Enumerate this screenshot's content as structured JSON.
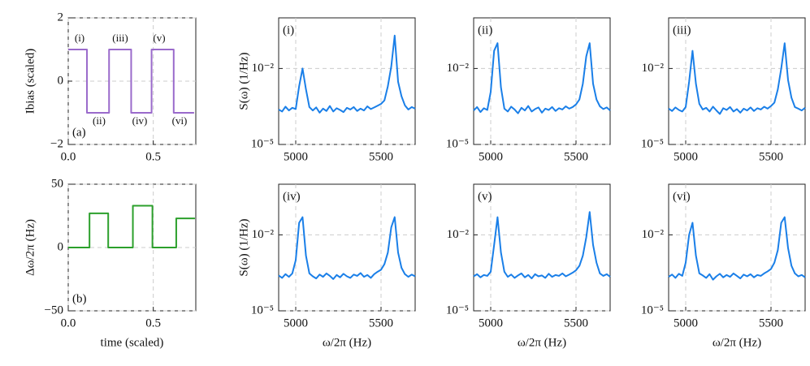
{
  "chart_data": [
    {
      "type": "line",
      "label": "(a)",
      "label_corner": "lower left",
      "ylabel": "Ibias (scaled)",
      "x": [
        0,
        0.11,
        0.11,
        0.24,
        0.24,
        0.37,
        0.37,
        0.49,
        0.49,
        0.62,
        0.62,
        0.74
      ],
      "series": [
        {
          "color": "#9a6acb",
          "values": [
            1,
            1,
            -1,
            -1,
            1,
            1,
            -1,
            -1,
            1,
            1,
            -1,
            -1
          ]
        }
      ],
      "xlim": [
        0,
        0.75
      ],
      "xticks": [
        {
          "value": 0,
          "label": "0.0"
        },
        0.5
      ],
      "ylim": [
        -2,
        2
      ],
      "yticks": [
        {
          "value": -2,
          "label": "−2"
        },
        0,
        2
      ],
      "grid": true,
      "annotations": [
        "(i)",
        "(ii)",
        "(iii)",
        "(iv)",
        "(v)",
        "(vi)"
      ]
    },
    {
      "type": "line",
      "label": "(b)",
      "label_corner": "lower left",
      "ylabel": "Δω/2π (Hz)",
      "xlabel": "time (scaled)",
      "x": [
        0,
        0.125,
        0.125,
        0.235,
        0.235,
        0.38,
        0.38,
        0.495,
        0.495,
        0.635,
        0.635,
        0.745
      ],
      "series": [
        {
          "color": "#2ca02c",
          "values": [
            0,
            0,
            27,
            27,
            0,
            0,
            33,
            33,
            0,
            0,
            23,
            23
          ]
        }
      ],
      "xlim": [
        0,
        0.75
      ],
      "xticks": [
        {
          "value": 0,
          "label": "0.0"
        },
        0.5
      ],
      "ylim": [
        -50,
        50
      ],
      "yticks": [
        {
          "value": -50,
          "label": "−50"
        },
        0,
        50
      ],
      "grid": true
    },
    {
      "type": "line",
      "label": "(i)",
      "label_corner": "upper left",
      "ylabel": "S(ω) (1/Hz)",
      "log_y": true,
      "x": [
        4900,
        4920,
        4940,
        4960,
        4980,
        5000,
        5020,
        5040,
        5060,
        5080,
        5100,
        5120,
        5140,
        5160,
        5180,
        5200,
        5220,
        5240,
        5260,
        5280,
        5300,
        5320,
        5340,
        5360,
        5380,
        5400,
        5420,
        5440,
        5460,
        5480,
        5500,
        5520,
        5540,
        5560,
        5580,
        5600,
        5620,
        5640,
        5660,
        5680,
        5700
      ],
      "series": [
        {
          "color": "#1a7fe8",
          "values": [
            0.00024,
            0.0002,
            0.00031,
            0.00022,
            0.00028,
            0.00025,
            0.002,
            0.01,
            0.0015,
            0.0003,
            0.00022,
            0.00029,
            0.00018,
            0.00026,
            0.00021,
            0.00033,
            0.0002,
            0.00027,
            0.00023,
            0.00019,
            0.00028,
            0.00024,
            0.0003,
            0.00021,
            0.00026,
            0.00022,
            0.00032,
            0.00025,
            0.00029,
            0.00034,
            0.0004,
            0.00055,
            0.002,
            0.012,
            0.2,
            0.003,
            0.0008,
            0.00035,
            0.00024,
            0.0003,
            0.00026
          ]
        }
      ],
      "xlim": [
        4900,
        5700
      ],
      "xticks": [
        5000,
        5500
      ],
      "ylim": [
        1e-05,
        1
      ],
      "yticks": [
        {
          "value": 1e-05,
          "label": "10⁻⁵"
        },
        {
          "value": 0.01,
          "label": "10⁻²"
        }
      ],
      "grid": true
    },
    {
      "type": "line",
      "label": "(ii)",
      "label_corner": "upper left",
      "log_y": true,
      "x": [
        4900,
        4920,
        4940,
        4960,
        4980,
        5000,
        5020,
        5040,
        5060,
        5080,
        5100,
        5120,
        5140,
        5160,
        5180,
        5200,
        5220,
        5240,
        5260,
        5280,
        5300,
        5320,
        5340,
        5360,
        5380,
        5400,
        5420,
        5440,
        5460,
        5480,
        5500,
        5520,
        5540,
        5560,
        5580,
        5600,
        5620,
        5640,
        5660,
        5680,
        5700
      ],
      "series": [
        {
          "color": "#1a7fe8",
          "values": [
            0.00022,
            0.0003,
            0.00019,
            0.00027,
            0.00023,
            0.0012,
            0.05,
            0.1,
            0.0018,
            0.00026,
            0.0002,
            0.00031,
            0.00024,
            0.00017,
            0.00028,
            0.00022,
            0.00033,
            0.0002,
            0.00025,
            0.00029,
            0.00018,
            0.00026,
            0.00023,
            0.0003,
            0.00021,
            0.00027,
            0.00024,
            0.00032,
            0.00026,
            0.0003,
            0.00038,
            0.0006,
            0.0025,
            0.03,
            0.1,
            0.0025,
            0.0006,
            0.00032,
            0.00025,
            0.00029,
            0.00022
          ]
        }
      ],
      "xlim": [
        4900,
        5700
      ],
      "xticks": [
        5000,
        5500
      ],
      "ylim": [
        1e-05,
        1
      ],
      "yticks": [
        {
          "value": 1e-05,
          "label": "10⁻⁵"
        },
        {
          "value": 0.01,
          "label": "10⁻²"
        }
      ],
      "grid": true
    },
    {
      "type": "line",
      "label": "(iii)",
      "label_corner": "upper left",
      "log_y": true,
      "x": [
        4900,
        4920,
        4940,
        4960,
        4980,
        5000,
        5020,
        5040,
        5060,
        5080,
        5100,
        5120,
        5140,
        5160,
        5180,
        5200,
        5220,
        5240,
        5260,
        5280,
        5300,
        5320,
        5340,
        5360,
        5380,
        5400,
        5420,
        5440,
        5460,
        5480,
        5500,
        5520,
        5540,
        5560,
        5580,
        5600,
        5620,
        5640,
        5660,
        5680,
        5700
      ],
      "series": [
        {
          "color": "#1a7fe8",
          "values": [
            0.00026,
            0.00021,
            0.00029,
            0.00023,
            0.0002,
            0.0003,
            0.003,
            0.05,
            0.0025,
            0.0004,
            0.00024,
            0.00028,
            0.0002,
            0.00031,
            0.00022,
            0.00016,
            0.00027,
            0.00023,
            0.0003,
            0.0002,
            0.00025,
            0.00018,
            0.00026,
            0.00022,
            0.00029,
            0.00021,
            0.00027,
            0.00024,
            0.00031,
            0.00026,
            0.00033,
            0.00045,
            0.0015,
            0.01,
            0.1,
            0.0035,
            0.0007,
            0.0003,
            0.00026,
            0.00022,
            0.00028
          ]
        }
      ],
      "xlim": [
        4900,
        5700
      ],
      "xticks": [
        5000,
        5500
      ],
      "ylim": [
        1e-05,
        1
      ],
      "yticks": [
        {
          "value": 1e-05,
          "label": "10⁻⁵"
        },
        {
          "value": 0.01,
          "label": "10⁻²"
        }
      ],
      "grid": true
    },
    {
      "type": "line",
      "label": "(iv)",
      "label_corner": "upper left",
      "log_y": true,
      "ylabel": "S(ω) (1/Hz)",
      "xlabel": "ω/2π (Hz)",
      "x": [
        4900,
        4920,
        4940,
        4960,
        4980,
        5000,
        5020,
        5040,
        5060,
        5080,
        5100,
        5120,
        5140,
        5160,
        5180,
        5200,
        5220,
        5240,
        5260,
        5280,
        5300,
        5320,
        5340,
        5360,
        5380,
        5400,
        5420,
        5440,
        5460,
        5480,
        5500,
        5520,
        5540,
        5560,
        5580,
        5600,
        5620,
        5640,
        5660,
        5680,
        5700
      ],
      "series": [
        {
          "color": "#1a7fe8",
          "values": [
            0.00025,
            0.0002,
            0.00028,
            0.00022,
            0.0003,
            0.001,
            0.03,
            0.05,
            0.0015,
            0.0003,
            0.00023,
            0.00019,
            0.00027,
            0.00022,
            0.0003,
            0.00024,
            0.00018,
            0.00026,
            0.00021,
            0.00029,
            0.00023,
            0.0002,
            0.00027,
            0.00024,
            0.00031,
            0.00022,
            0.00026,
            0.0002,
            0.00028,
            0.00035,
            0.00042,
            0.0007,
            0.002,
            0.02,
            0.05,
            0.002,
            0.0005,
            0.00028,
            0.00022,
            0.00027,
            0.00023
          ]
        }
      ],
      "xlim": [
        4900,
        5700
      ],
      "xticks": [
        5000,
        5500
      ],
      "ylim": [
        1e-05,
        1
      ],
      "yticks": [
        {
          "value": 1e-05,
          "label": "10⁻⁵"
        },
        {
          "value": 0.01,
          "label": "10⁻²"
        }
      ],
      "grid": true
    },
    {
      "type": "line",
      "label": "(v)",
      "label_corner": "upper left",
      "log_y": true,
      "xlabel": "ω/2π (Hz)",
      "x": [
        4900,
        4920,
        4940,
        4960,
        4980,
        5000,
        5020,
        5040,
        5060,
        5080,
        5100,
        5120,
        5140,
        5160,
        5180,
        5200,
        5220,
        5240,
        5260,
        5280,
        5300,
        5320,
        5340,
        5360,
        5380,
        5400,
        5420,
        5440,
        5460,
        5480,
        5500,
        5520,
        5540,
        5560,
        5580,
        5600,
        5620,
        5640,
        5660,
        5680,
        5700
      ],
      "series": [
        {
          "color": "#1a7fe8",
          "values": [
            0.00023,
            0.00028,
            0.00021,
            0.00026,
            0.00024,
            0.00035,
            0.004,
            0.05,
            0.002,
            0.00035,
            0.00022,
            0.00027,
            0.0002,
            0.00025,
            0.0003,
            0.00021,
            0.00026,
            0.00019,
            0.00028,
            0.00023,
            0.00025,
            0.0002,
            0.00029,
            0.00022,
            0.00026,
            0.00024,
            0.0003,
            0.00023,
            0.00027,
            0.00032,
            0.0004,
            0.0006,
            0.0015,
            0.008,
            0.08,
            0.004,
            0.0008,
            0.0003,
            0.00024,
            0.00028,
            0.00022
          ]
        }
      ],
      "xlim": [
        4900,
        5700
      ],
      "xticks": [
        5000,
        5500
      ],
      "ylim": [
        1e-05,
        1
      ],
      "yticks": [
        {
          "value": 1e-05,
          "label": "10⁻⁵"
        },
        {
          "value": 0.01,
          "label": "10⁻²"
        }
      ],
      "grid": true
    },
    {
      "type": "line",
      "label": "(vi)",
      "label_corner": "upper left",
      "log_y": true,
      "xlabel": "ω/2π (Hz)",
      "x": [
        4900,
        4920,
        4940,
        4960,
        4980,
        5000,
        5020,
        5040,
        5060,
        5080,
        5100,
        5120,
        5140,
        5160,
        5180,
        5200,
        5220,
        5240,
        5260,
        5280,
        5300,
        5320,
        5340,
        5360,
        5380,
        5400,
        5420,
        5440,
        5460,
        5480,
        5500,
        5520,
        5540,
        5560,
        5580,
        5600,
        5620,
        5640,
        5660,
        5680,
        5700
      ],
      "series": [
        {
          "color": "#1a7fe8",
          "values": [
            0.00022,
            0.00027,
            0.0002,
            0.00029,
            0.00024,
            0.0008,
            0.01,
            0.03,
            0.0015,
            0.0003,
            0.00025,
            0.0002,
            0.00028,
            0.00017,
            0.00023,
            0.00029,
            0.00021,
            0.00026,
            0.00022,
            0.0003,
            0.00024,
            0.00019,
            0.00027,
            0.00023,
            0.00028,
            0.00021,
            0.00026,
            0.00024,
            0.0003,
            0.00036,
            0.00045,
            0.0008,
            0.0025,
            0.03,
            0.05,
            0.003,
            0.0006,
            0.0003,
            0.00023,
            0.00026,
            0.00021
          ]
        }
      ],
      "xlim": [
        4900,
        5700
      ],
      "xticks": [
        5000,
        5500
      ],
      "ylim": [
        1e-05,
        1
      ],
      "yticks": [
        {
          "value": 1e-05,
          "label": "10⁻⁵"
        },
        {
          "value": 0.01,
          "label": "10⁻²"
        }
      ],
      "grid": true
    }
  ]
}
